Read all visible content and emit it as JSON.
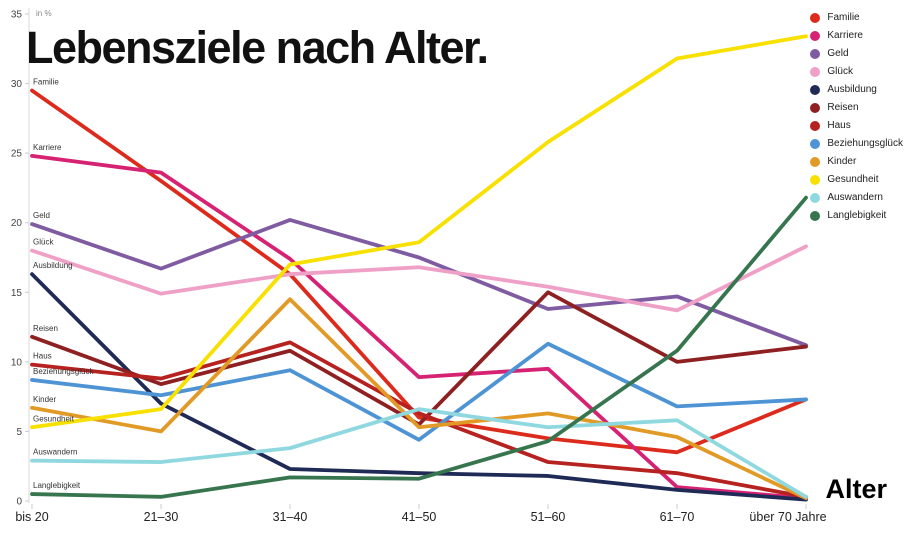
{
  "title": "Lebensziele nach Alter.",
  "y_axis_unit_label": "in %",
  "x_axis_label": "Alter",
  "chart_data": {
    "type": "line",
    "title": "Lebensziele nach Alter.",
    "xlabel": "Alter",
    "ylabel": "in %",
    "ylim": [
      0,
      35
    ],
    "y_ticks": [
      0,
      5,
      10,
      15,
      20,
      25,
      30,
      35
    ],
    "grid": false,
    "legend_position": "top-right",
    "series_start_labels": true,
    "categories": [
      "bis 20",
      "21–30",
      "31–40",
      "41–50",
      "51–60",
      "61–70",
      "über 70 Jahre"
    ],
    "series": [
      {
        "name": "Familie",
        "color": "#dc2b1c",
        "values": [
          29.5,
          23.0,
          16.3,
          6.0,
          4.5,
          3.5,
          7.3
        ]
      },
      {
        "name": "Karriere",
        "color": "#d62272",
        "values": [
          24.8,
          23.6,
          17.4,
          8.9,
          9.5,
          1.0,
          0.2
        ]
      },
      {
        "name": "Geld",
        "color": "#7f5ca2",
        "values": [
          19.9,
          16.7,
          20.2,
          17.5,
          13.8,
          14.7,
          11.2
        ]
      },
      {
        "name": "Glück",
        "color": "#efa0c6",
        "values": [
          18.0,
          14.9,
          16.3,
          16.8,
          15.4,
          13.7,
          18.3
        ]
      },
      {
        "name": "Ausbildung",
        "color": "#1f2a56",
        "values": [
          16.3,
          7.0,
          2.3,
          2.0,
          1.8,
          0.8,
          0.1
        ]
      },
      {
        "name": "Reisen",
        "color": "#8e2022",
        "values": [
          11.8,
          8.4,
          10.8,
          5.5,
          15.0,
          10.0,
          11.1
        ]
      },
      {
        "name": "Haus",
        "color": "#b5221f",
        "values": [
          9.8,
          8.8,
          11.4,
          6.3,
          2.8,
          2.0,
          0.3
        ]
      },
      {
        "name": "Beziehungsglück",
        "color": "#4e94d4",
        "values": [
          8.7,
          7.6,
          9.4,
          4.4,
          11.3,
          6.8,
          7.3
        ]
      },
      {
        "name": "Kinder",
        "color": "#e29a26",
        "values": [
          6.7,
          5.0,
          14.5,
          5.3,
          6.3,
          4.6,
          0.2
        ]
      },
      {
        "name": "Gesundheit",
        "color": "#f8e000",
        "values": [
          5.3,
          6.6,
          17.0,
          18.6,
          25.8,
          31.8,
          33.4
        ]
      },
      {
        "name": "Auswandern",
        "color": "#8fd8df",
        "values": [
          2.9,
          2.8,
          3.8,
          6.6,
          5.3,
          5.8,
          0.3
        ]
      },
      {
        "name": "Langlebigkeit",
        "color": "#37754f",
        "values": [
          0.5,
          0.3,
          1.7,
          1.6,
          4.3,
          10.8,
          21.8
        ]
      }
    ]
  }
}
